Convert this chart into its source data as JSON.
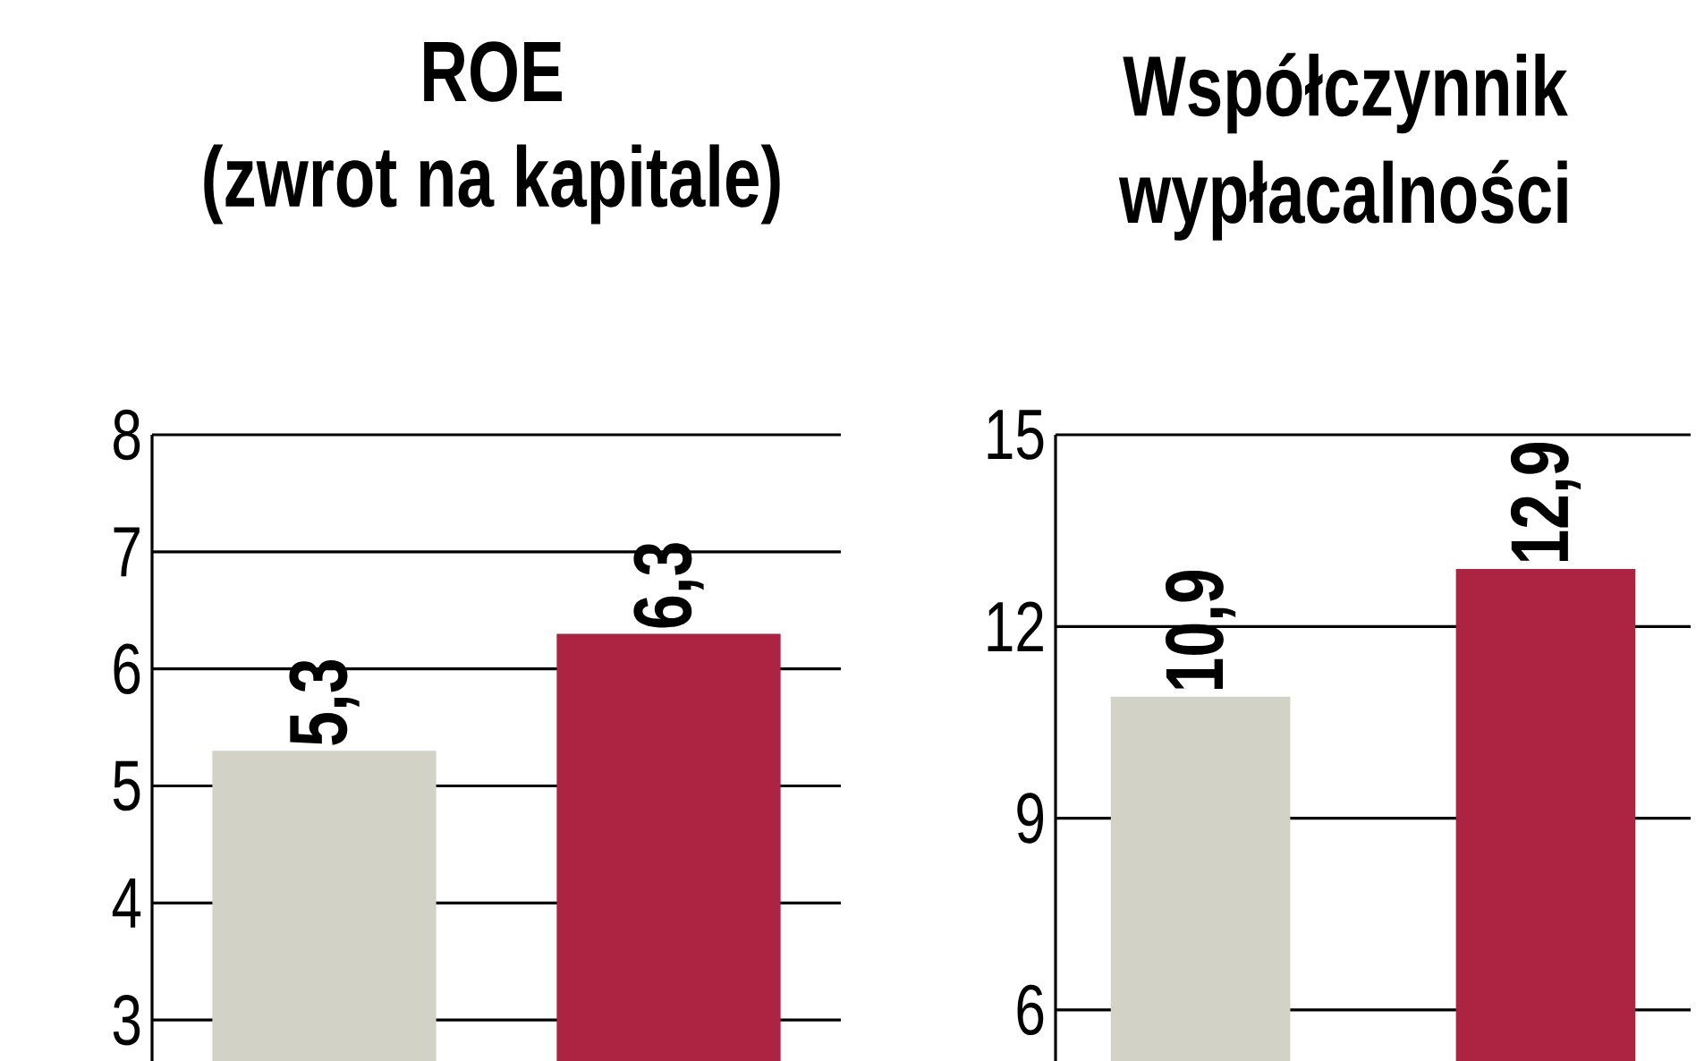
{
  "chart_data": [
    {
      "type": "bar",
      "title": "ROE",
      "subtitle": "(zwrot na kapitale)",
      "categories": [
        null,
        null
      ],
      "values": [
        5.3,
        6.3
      ],
      "colors": [
        "#d3d2c6",
        "#ad2342"
      ],
      "value_labels": [
        "5,3",
        "6,3"
      ],
      "ylim": [
        2.65,
        8
      ],
      "yticks": [
        3,
        4,
        5,
        6,
        7,
        8
      ],
      "grid": "y",
      "tick_labels": "y"
    },
    {
      "type": "bar",
      "title": "Współczynnik wypłacalności",
      "categories": [
        null,
        null
      ],
      "values": [
        10.9,
        12.9
      ],
      "colors": [
        "#d3d2c6",
        "#ad2342"
      ],
      "value_labels": [
        "10,9",
        "12,9"
      ],
      "ylim": [
        5.2,
        15
      ],
      "yticks": [
        6,
        9,
        12,
        15
      ],
      "grid": "y",
      "tick_labels": "y"
    }
  ]
}
